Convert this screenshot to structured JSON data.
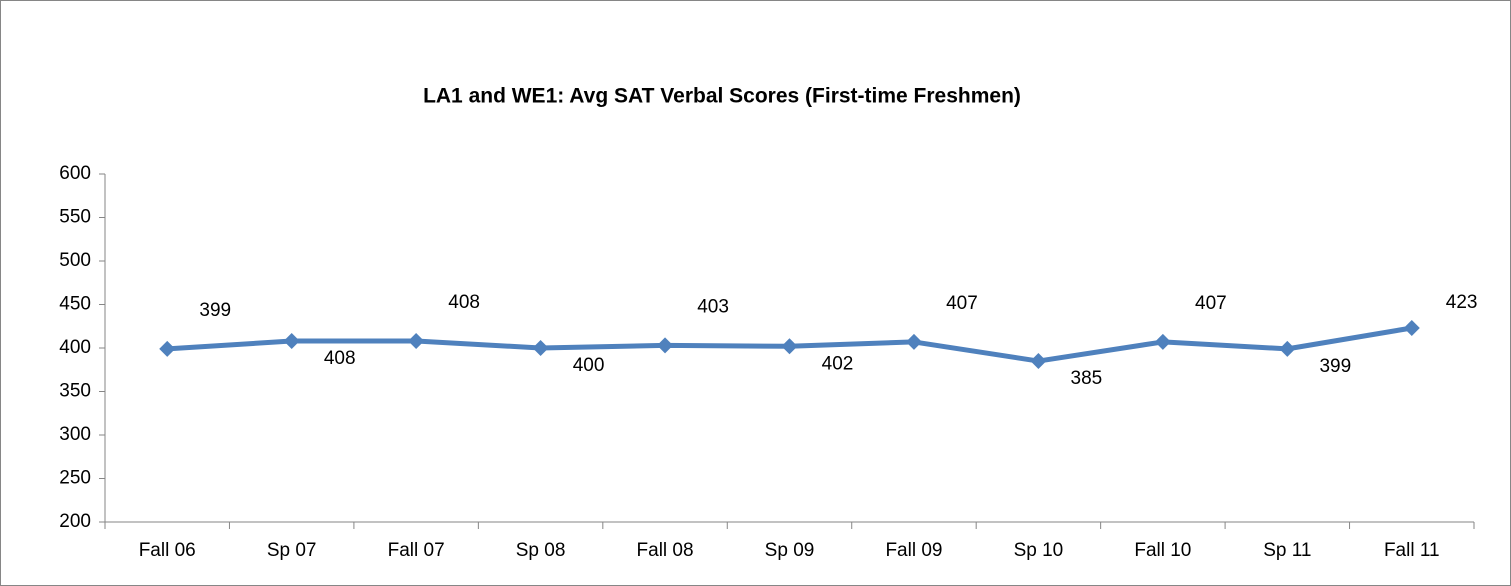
{
  "chart_data": {
    "type": "line",
    "title": "LA1 and WE1: Avg SAT Verbal Scores  (First-time Freshmen)",
    "categories": [
      "Fall 06",
      "Sp 07",
      "Fall 07",
      "Sp 08",
      "Fall 08",
      "Sp 09",
      "Fall 09",
      "Sp 10",
      "Fall 10",
      "Sp 11",
      "Fall 11"
    ],
    "values": [
      399,
      408,
      408,
      400,
      403,
      402,
      407,
      385,
      407,
      399,
      423
    ],
    "color": "#4f81bd",
    "ylim": [
      200,
      600
    ],
    "yticks": [
      200,
      250,
      300,
      350,
      400,
      450,
      500,
      550,
      600
    ],
    "grid": false
  }
}
